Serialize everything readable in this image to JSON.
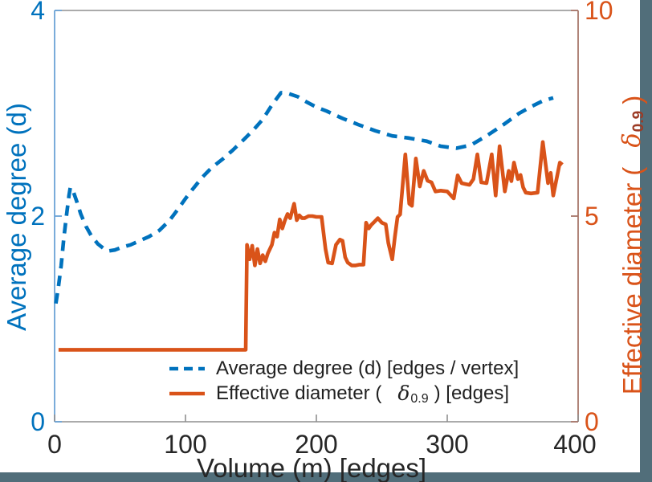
{
  "figure": {
    "background": "#ffffff",
    "band_color": "#516e7a",
    "spines": {
      "top": "#8f8f8f",
      "bottom": "#8f8f8f",
      "left": "#6ba3d6",
      "right": "#a8766a"
    }
  },
  "axes": {
    "x": {
      "label": "Volume (m) [edges]",
      "ticks": [
        "0",
        "100",
        "200",
        "300",
        "400"
      ],
      "text_color": "#262626"
    },
    "left": {
      "label": "Average degree (d)",
      "ticks": [
        "0",
        "2",
        "4"
      ],
      "color": "#0072BD"
    },
    "right": {
      "label_prefix": "Effective diameter (",
      "label_delta": "δ",
      "label_sub": "0.9",
      "label_suffix": ")",
      "ticks": [
        "0",
        "5",
        "10"
      ],
      "color": "#D95319",
      "sub_overlay_color": "#9c3a24"
    }
  },
  "legend": {
    "text_color": "#212121",
    "items": [
      {
        "label": "Average degree (d) [edges / vertex]",
        "style": "dashed",
        "color": "#0072BD"
      },
      {
        "prefix": "Effective diameter (",
        "delta": "δ",
        "sub": "0.9",
        "suffix": ") [edges]",
        "style": "solid",
        "color": "#D95319"
      }
    ]
  },
  "chart_data": {
    "type": "line",
    "title": "",
    "xlabel": "Volume (m) [edges]",
    "xlim": [
      0,
      400
    ],
    "x_ticks": [
      0,
      100,
      200,
      300,
      400
    ],
    "grid": false,
    "legend_position": "inside lower center",
    "y_left": {
      "label": "Average degree (d)",
      "lim": [
        0,
        4
      ],
      "ticks": [
        0,
        2,
        4
      ],
      "color": "#0072BD"
    },
    "y_right": {
      "label": "Effective diameter ( δ0.9 )",
      "lim": [
        0,
        10
      ],
      "ticks": [
        0,
        5,
        10
      ],
      "color": "#D95319"
    },
    "series": [
      {
        "name": "Average degree (d) [edges / vertex]",
        "axis": "left",
        "color": "#0072BD",
        "style": "dashed",
        "points": [
          [
            1,
            1.15
          ],
          [
            3,
            1.32
          ],
          [
            5,
            1.52
          ],
          [
            7,
            1.78
          ],
          [
            9,
            2.0
          ],
          [
            11,
            2.2
          ],
          [
            12,
            2.28
          ],
          [
            14,
            2.25
          ],
          [
            17,
            2.14
          ],
          [
            20,
            2.02
          ],
          [
            24,
            1.9
          ],
          [
            28,
            1.81
          ],
          [
            33,
            1.73
          ],
          [
            38,
            1.68
          ],
          [
            41,
            1.66
          ],
          [
            46,
            1.67
          ],
          [
            52,
            1.7
          ],
          [
            58,
            1.72
          ],
          [
            65,
            1.76
          ],
          [
            72,
            1.8
          ],
          [
            80,
            1.86
          ],
          [
            88,
            1.96
          ],
          [
            95,
            2.08
          ],
          [
            100,
            2.17
          ],
          [
            106,
            2.27
          ],
          [
            113,
            2.38
          ],
          [
            120,
            2.47
          ],
          [
            128,
            2.55
          ],
          [
            136,
            2.64
          ],
          [
            145,
            2.75
          ],
          [
            152,
            2.84
          ],
          [
            159,
            2.94
          ],
          [
            166,
            3.08
          ],
          [
            173,
            3.2
          ],
          [
            179,
            3.19
          ],
          [
            186,
            3.16
          ],
          [
            191,
            3.12
          ],
          [
            200,
            3.06
          ],
          [
            208,
            3.02
          ],
          [
            220,
            2.95
          ],
          [
            232,
            2.89
          ],
          [
            245,
            2.83
          ],
          [
            258,
            2.78
          ],
          [
            270,
            2.76
          ],
          [
            284,
            2.73
          ],
          [
            295,
            2.68
          ],
          [
            307,
            2.66
          ],
          [
            318,
            2.69
          ],
          [
            330,
            2.78
          ],
          [
            343,
            2.89
          ],
          [
            355,
            3.0
          ],
          [
            365,
            3.07
          ],
          [
            373,
            3.12
          ],
          [
            381,
            3.15
          ]
        ]
      },
      {
        "name": "Effective diameter ( δ0.9 ) [edges]",
        "axis": "right",
        "color": "#D95319",
        "style": "solid",
        "points": [
          [
            3,
            1.75
          ],
          [
            146,
            1.75
          ],
          [
            147,
            4.3
          ],
          [
            149,
            3.95
          ],
          [
            151,
            4.28
          ],
          [
            153,
            3.8
          ],
          [
            155,
            4.2
          ],
          [
            157,
            3.85
          ],
          [
            159,
            4.05
          ],
          [
            161,
            3.9
          ],
          [
            163,
            4.1
          ],
          [
            166,
            4.3
          ],
          [
            168,
            4.6
          ],
          [
            170,
            4.5
          ],
          [
            172,
            4.92
          ],
          [
            174,
            4.7
          ],
          [
            176,
            4.9
          ],
          [
            178,
            5.05
          ],
          [
            180,
            4.95
          ],
          [
            183,
            5.3
          ],
          [
            185,
            4.9
          ],
          [
            187,
            5.02
          ],
          [
            189,
            4.95
          ],
          [
            191,
            4.95
          ],
          [
            194,
            5.0
          ],
          [
            197,
            5.0
          ],
          [
            200,
            4.98
          ],
          [
            204,
            4.98
          ],
          [
            207,
            4.2
          ],
          [
            209,
            3.87
          ],
          [
            212,
            3.85
          ],
          [
            215,
            4.3
          ],
          [
            218,
            4.43
          ],
          [
            220,
            4.4
          ],
          [
            222,
            4.0
          ],
          [
            224,
            3.87
          ],
          [
            227,
            3.8
          ],
          [
            230,
            3.8
          ],
          [
            233,
            3.82
          ],
          [
            236,
            3.82
          ],
          [
            238,
            4.84
          ],
          [
            240,
            4.7
          ],
          [
            242,
            4.79
          ],
          [
            244,
            4.85
          ],
          [
            247,
            4.95
          ],
          [
            250,
            4.84
          ],
          [
            253,
            4.8
          ],
          [
            255,
            4.35
          ],
          [
            258,
            3.95
          ],
          [
            260,
            4.5
          ],
          [
            262,
            4.98
          ],
          [
            264,
            5.04
          ],
          [
            268,
            6.5
          ],
          [
            271,
            5.3
          ],
          [
            273,
            5.25
          ],
          [
            276,
            6.4
          ],
          [
            279,
            5.72
          ],
          [
            282,
            6.1
          ],
          [
            285,
            5.86
          ],
          [
            288,
            5.82
          ],
          [
            291,
            5.6
          ],
          [
            295,
            5.62
          ],
          [
            300,
            5.6
          ],
          [
            305,
            5.43
          ],
          [
            308,
            5.99
          ],
          [
            311,
            5.8
          ],
          [
            314,
            5.78
          ],
          [
            317,
            5.76
          ],
          [
            320,
            5.9
          ],
          [
            323,
            6.5
          ],
          [
            326,
            5.82
          ],
          [
            330,
            5.8
          ],
          [
            334,
            6.5
          ],
          [
            337,
            5.5
          ],
          [
            340,
            6.7
          ],
          [
            344,
            5.6
          ],
          [
            347,
            6.1
          ],
          [
            349,
            5.85
          ],
          [
            351,
            6.3
          ],
          [
            354,
            5.9
          ],
          [
            356,
            6.0
          ],
          [
            358,
            5.7
          ],
          [
            360,
            5.57
          ],
          [
            364,
            5.55
          ],
          [
            369,
            5.57
          ],
          [
            373,
            6.8
          ],
          [
            377,
            5.8
          ],
          [
            379,
            6.05
          ],
          [
            381,
            5.5
          ],
          [
            386,
            6.3
          ],
          [
            388,
            6.25
          ]
        ]
      }
    ]
  }
}
